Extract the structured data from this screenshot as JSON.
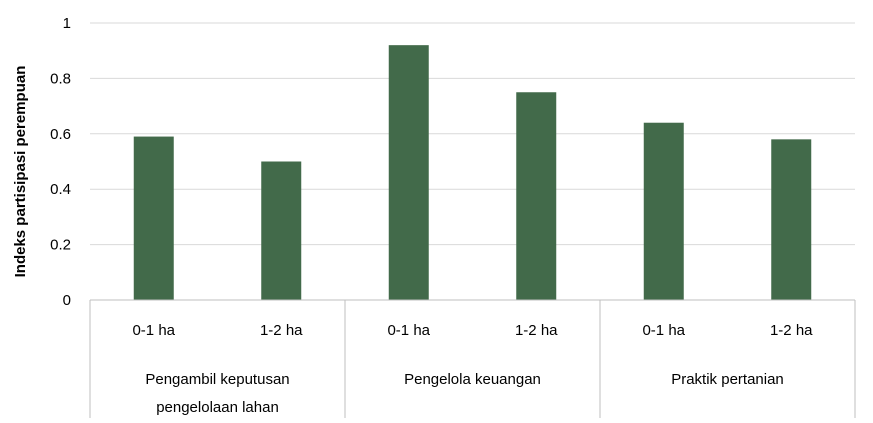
{
  "chart_data": {
    "type": "bar",
    "ylabel": "Indeks partisipasi perempuan",
    "ylim": [
      0,
      1
    ],
    "yticks": [
      0,
      0.2,
      0.4,
      0.6,
      0.8,
      1
    ],
    "ytick_labels": [
      "0",
      "0.2",
      "0.4",
      "0.6",
      "0.8",
      "1"
    ],
    "bar_color": "#426a4a",
    "grid": true,
    "groups": [
      {
        "label": "Pengambil keputusan pengelolaan lahan",
        "label_lines": [
          "Pengambil keputusan",
          "pengelolaan lahan"
        ],
        "categories": [
          "0-1 ha",
          "1-2 ha"
        ],
        "values": [
          0.59,
          0.5
        ]
      },
      {
        "label": "Pengelola keuangan",
        "label_lines": [
          "Pengelola keuangan"
        ],
        "categories": [
          "0-1 ha",
          "1-2 ha"
        ],
        "values": [
          0.92,
          0.75
        ]
      },
      {
        "label": "Praktik pertanian",
        "label_lines": [
          "Praktik pertanian"
        ],
        "categories": [
          "0-1 ha",
          "1-2 ha"
        ],
        "values": [
          0.64,
          0.58
        ]
      }
    ]
  }
}
